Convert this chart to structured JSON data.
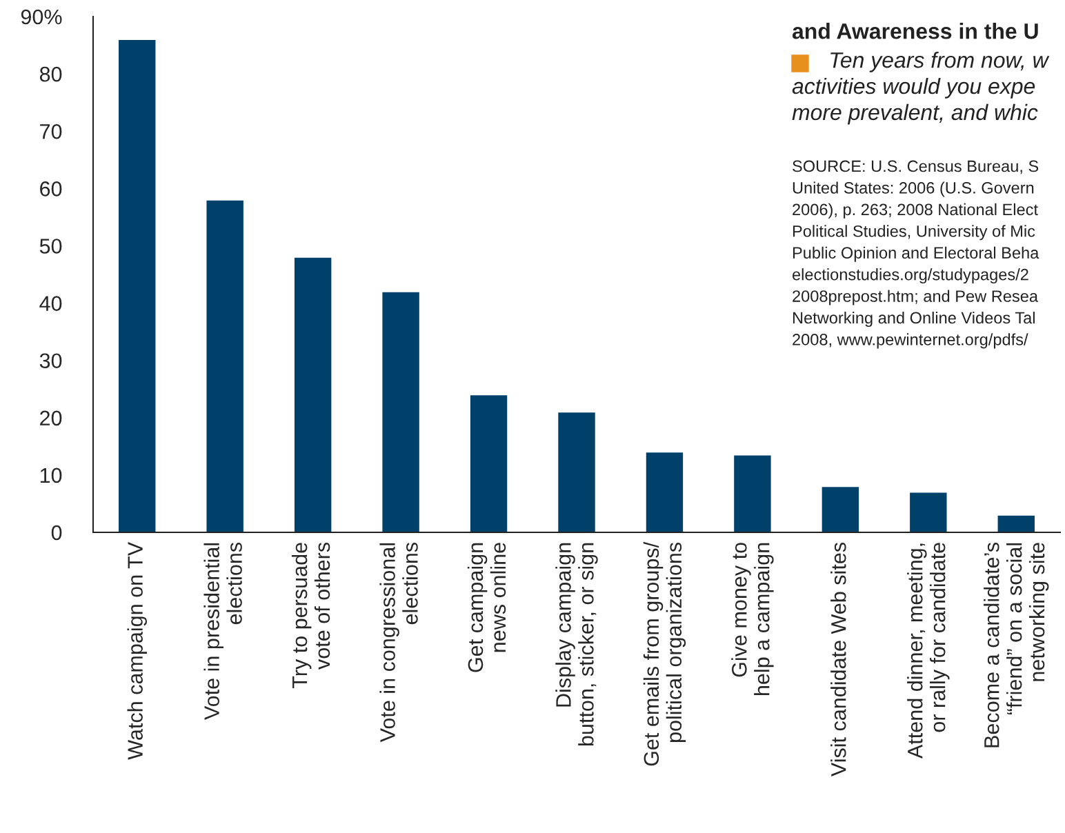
{
  "chart_data": {
    "type": "bar",
    "title": "and Awareness in the U",
    "subtitle": "Ten years from now, w\nactivities would you expe\nmore prevalent, and whic",
    "annotations": [
      "SOURCE: U.S. Census Bureau, S\nUnited States: 2006 (U.S. Govern\n2006), p. 263; 2008 National Elect\nPolitical Studies, University of Mic\nPublic Opinion and Electoral Beha\nelectionstudies.org/studypages/2\n2008prepost.htm; and Pew Resea\nNetworking and Online Videos Tal\n2008, www.pewinternet.org/pdfs/"
    ],
    "categories": [
      "Watch campaign on TV",
      "Vote in presidential\nelections",
      "Try to persuade\nvote of others",
      "Vote in congressional\nelections",
      "Get campaign\nnews online",
      "Display campaign\nbutton, sticker, or sign",
      "Get emails from groups/\npolitical organizations",
      "Give money to\nhelp a campaign",
      "Visit candidate Web sites",
      "Attend dinner, meeting,\nor rally for candidate",
      "Become a candidate’s\n“friend” on a social\nnetworking site"
    ],
    "values": [
      86,
      58,
      48,
      42,
      24,
      21,
      14,
      13.5,
      8,
      7,
      3
    ],
    "color": "#00416b",
    "ylim": [
      0,
      90
    ],
    "yticks": [
      0,
      10,
      20,
      30,
      40,
      50,
      60,
      70,
      80,
      {
        "value": 90,
        "label": "90%"
      }
    ],
    "grid": false,
    "legend": false
  }
}
